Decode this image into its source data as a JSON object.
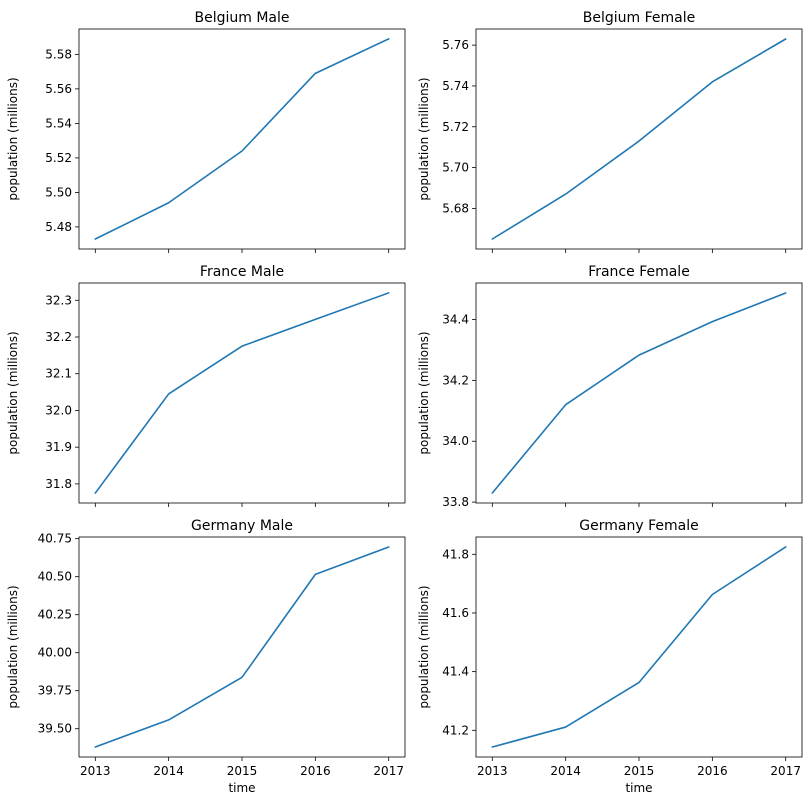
{
  "chart_data": [
    {
      "type": "line",
      "title": "Belgium Male",
      "ylabel": "population (millions)",
      "xlabel": "",
      "x": [
        2013,
        2014,
        2015,
        2016,
        2017
      ],
      "series": [
        {
          "values": [
            5.473,
            5.494,
            5.524,
            5.569,
            5.589
          ]
        }
      ],
      "yticks": [
        "5.48",
        "5.50",
        "5.52",
        "5.54",
        "5.56",
        "5.58"
      ],
      "xticks_labeled": false
    },
    {
      "type": "line",
      "title": "Belgium Female",
      "ylabel": "population (millions)",
      "xlabel": "",
      "x": [
        2013,
        2014,
        2015,
        2016,
        2017
      ],
      "series": [
        {
          "values": [
            5.665,
            5.687,
            5.713,
            5.742,
            5.763
          ]
        }
      ],
      "yticks": [
        "5.68",
        "5.70",
        "5.72",
        "5.74",
        "5.76"
      ],
      "xticks_labeled": false
    },
    {
      "type": "line",
      "title": "France Male",
      "ylabel": "population (millions)",
      "xlabel": "",
      "x": [
        2013,
        2014,
        2015,
        2016,
        2017
      ],
      "series": [
        {
          "values": [
            31.775,
            32.045,
            32.175,
            32.248,
            32.32
          ]
        }
      ],
      "yticks": [
        "31.8",
        "31.9",
        "32.0",
        "32.1",
        "32.2",
        "32.3"
      ],
      "xticks_labeled": false
    },
    {
      "type": "line",
      "title": "France Female",
      "ylabel": "population (millions)",
      "xlabel": "",
      "x": [
        2013,
        2014,
        2015,
        2016,
        2017
      ],
      "series": [
        {
          "values": [
            33.83,
            34.12,
            34.283,
            34.393,
            34.487
          ]
        }
      ],
      "yticks": [
        "33.8",
        "34.0",
        "34.2",
        "34.4"
      ],
      "xticks_labeled": false
    },
    {
      "type": "line",
      "title": "Germany Male",
      "ylabel": "population (millions)",
      "xlabel": "time",
      "x": [
        2013,
        2014,
        2015,
        2016,
        2017
      ],
      "series": [
        {
          "values": [
            39.38,
            39.558,
            39.838,
            40.515,
            40.695
          ]
        }
      ],
      "yticks": [
        "39.50",
        "39.75",
        "40.00",
        "40.25",
        "40.50",
        "40.75"
      ],
      "xticks_labeled": true
    },
    {
      "type": "line",
      "title": "Germany Female",
      "ylabel": "population (millions)",
      "xlabel": "time",
      "x": [
        2013,
        2014,
        2015,
        2016,
        2017
      ],
      "series": [
        {
          "values": [
            41.143,
            41.211,
            41.363,
            41.663,
            41.825
          ]
        }
      ],
      "yticks": [
        "41.2",
        "41.4",
        "41.6",
        "41.8"
      ],
      "xticks_labeled": true
    }
  ],
  "colors": {
    "line": "#1f77b4",
    "axis": "#000000"
  }
}
